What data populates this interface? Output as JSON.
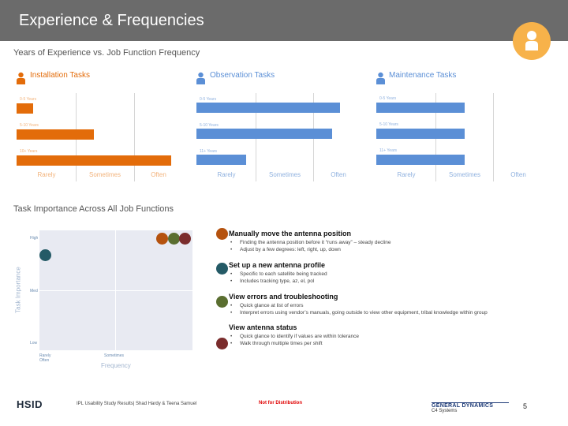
{
  "header": {
    "title": "Experience & Frequencies"
  },
  "colors": {
    "installation": "#e36c0a",
    "observation": "#5b8fd6",
    "maintenance": "#5b8fd6",
    "avatar": "#f7b24a"
  },
  "section1_title": "Years of Experience vs. Job Function Frequency",
  "section2_title": "Task Importance Across All Job Functions",
  "chart_data": [
    {
      "type": "bar",
      "orientation": "horizontal",
      "title": "Installation Tasks",
      "categories": [
        "0-5 Years",
        "5-10 Years",
        "10+ Years"
      ],
      "values": [
        0.3,
        1.4,
        2.8
      ],
      "xticks": [
        "Rarely",
        "Sometimes",
        "Often"
      ],
      "xlim": [
        0,
        3
      ]
    },
    {
      "type": "bar",
      "orientation": "horizontal",
      "title": "Observation Tasks",
      "categories": [
        "0-5 Years",
        "5-10 Years",
        "11+ Years"
      ],
      "values": [
        2.6,
        2.45,
        0.9
      ],
      "xticks": [
        "Rarely",
        "Sometimes",
        "Often"
      ],
      "xlim": [
        0,
        3
      ]
    },
    {
      "type": "bar",
      "orientation": "horizontal",
      "title": "Maintenance Tasks",
      "categories": [
        "0-5 Years",
        "5-10 Years",
        "11+ Years"
      ],
      "values": [
        1.6,
        1.6,
        1.6
      ],
      "xticks": [
        "Rarely",
        "Sometimes",
        "Often"
      ],
      "xlim": [
        0,
        3
      ]
    },
    {
      "type": "scatter",
      "xlabel": "Frequency",
      "ylabel": "Task Importance",
      "xticks": [
        "Rarely",
        "Often",
        "Sometimes"
      ],
      "yticks": [
        "High",
        "Med",
        "Low"
      ],
      "xlim": [
        0,
        1
      ],
      "ylim": [
        0,
        1
      ],
      "points": [
        {
          "x": 0.8,
          "y": 0.93,
          "color": "#b5520e"
        },
        {
          "x": 0.88,
          "y": 0.93,
          "color": "#5a6e30"
        },
        {
          "x": 0.95,
          "y": 0.93,
          "color": "#7a2c2c"
        },
        {
          "x": 0.04,
          "y": 0.79,
          "color": "#245a66"
        }
      ]
    }
  ],
  "tasks": [
    {
      "title": "Manually move the antenna position",
      "color": "#b5520e",
      "bullets": [
        "Finding the antenna position before it “runs away” – steady decline",
        "Adjust by a few degrees: left, right, up, down"
      ]
    },
    {
      "title": "Set up a new antenna profile",
      "color": "#245a66",
      "bullets": [
        "Specific to each satellite being tracked",
        "Includes tracking type, az, el, pol"
      ]
    },
    {
      "title": "View errors and troubleshooting",
      "color": "#5a6e30",
      "bullets": [
        "Quick glance at list of errors",
        "Interpret errors using vendor’s manuals, going outside to view other equipment, tribal knowledge within group"
      ]
    },
    {
      "title": "View antenna status",
      "color": "#7a2c2c",
      "bullets": [
        "Quick glance to identify if values are within tolerance",
        "Walk through multiple times per shift"
      ]
    }
  ],
  "footer": {
    "logo": "HSID",
    "credit": "IPL Usability Study Results| Shad Hardy & Teena Samuel",
    "notice": "Not for Distribution",
    "company": "GENERAL DYNAMICS",
    "division": "C4 Systems",
    "page": "5"
  }
}
